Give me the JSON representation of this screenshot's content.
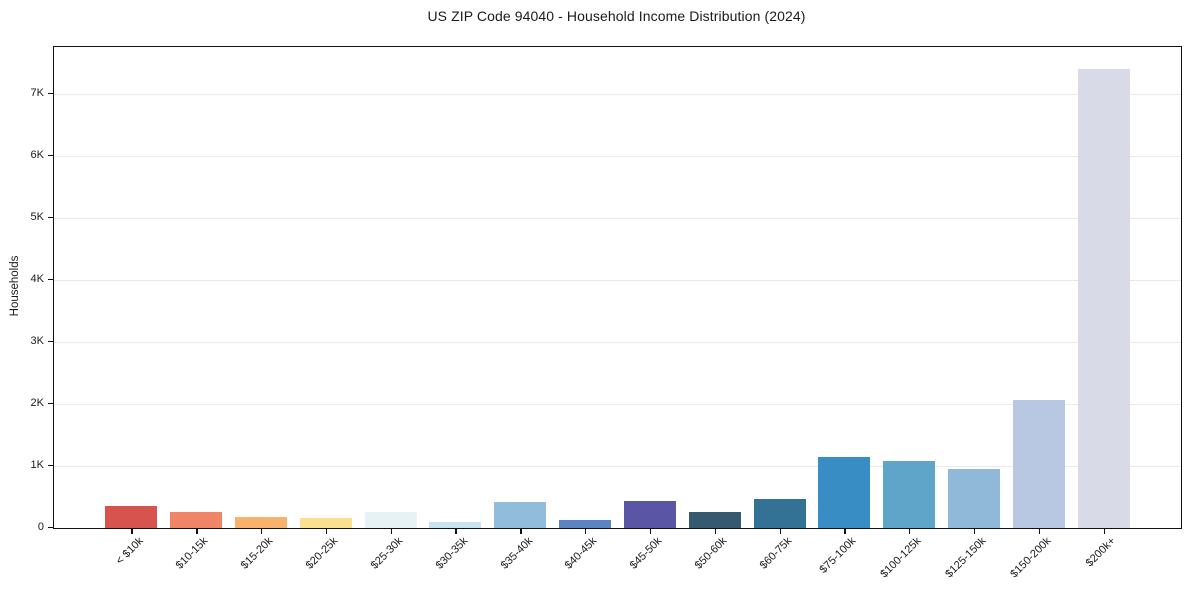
{
  "chart_data": {
    "type": "bar",
    "title": "US ZIP Code 94040 - Household Income Distribution (2024)",
    "xlabel": "",
    "ylabel": "Households",
    "categories": [
      "< $10k",
      "$10-15k",
      "$15-20k",
      "$20-25k",
      "$25-30k",
      "$30-35k",
      "$35-40k",
      "$40-45k",
      "$45-50k",
      "$50-60k",
      "$60-75k",
      "$75-100k",
      "$100-125k",
      "$125-150k",
      "$150-200k",
      "$200k+"
    ],
    "values": [
      350,
      255,
      180,
      165,
      260,
      100,
      415,
      125,
      440,
      255,
      475,
      1150,
      1075,
      945,
      2060,
      7400
    ],
    "bar_colors": [
      "#d6544d",
      "#f08466",
      "#f7b36e",
      "#fbe18f",
      "#e6f2f4",
      "#c9e3ee",
      "#92bcdb",
      "#5b84c3",
      "#5b55a6",
      "#355a70",
      "#347295",
      "#388ec4",
      "#5fa5c9",
      "#90b8d9",
      "#b9c8e2",
      "#d8dae7"
    ],
    "yticks": [
      {
        "label": "0",
        "value": 0
      },
      {
        "label": "1K",
        "value": 1000
      },
      {
        "label": "2K",
        "value": 2000
      },
      {
        "label": "3K",
        "value": 3000
      },
      {
        "label": "4K",
        "value": 4000
      },
      {
        "label": "5K",
        "value": 5000
      },
      {
        "label": "6K",
        "value": 6000
      },
      {
        "label": "7K",
        "value": 7000
      }
    ],
    "ylim": [
      0,
      7750
    ],
    "grid": "horizontal",
    "legend_position": "none"
  },
  "style": {
    "background_color": "#ffffff",
    "grid_color": "#e9e9ee",
    "axis_color": "#111111",
    "text_color": "#1a1a1a"
  }
}
